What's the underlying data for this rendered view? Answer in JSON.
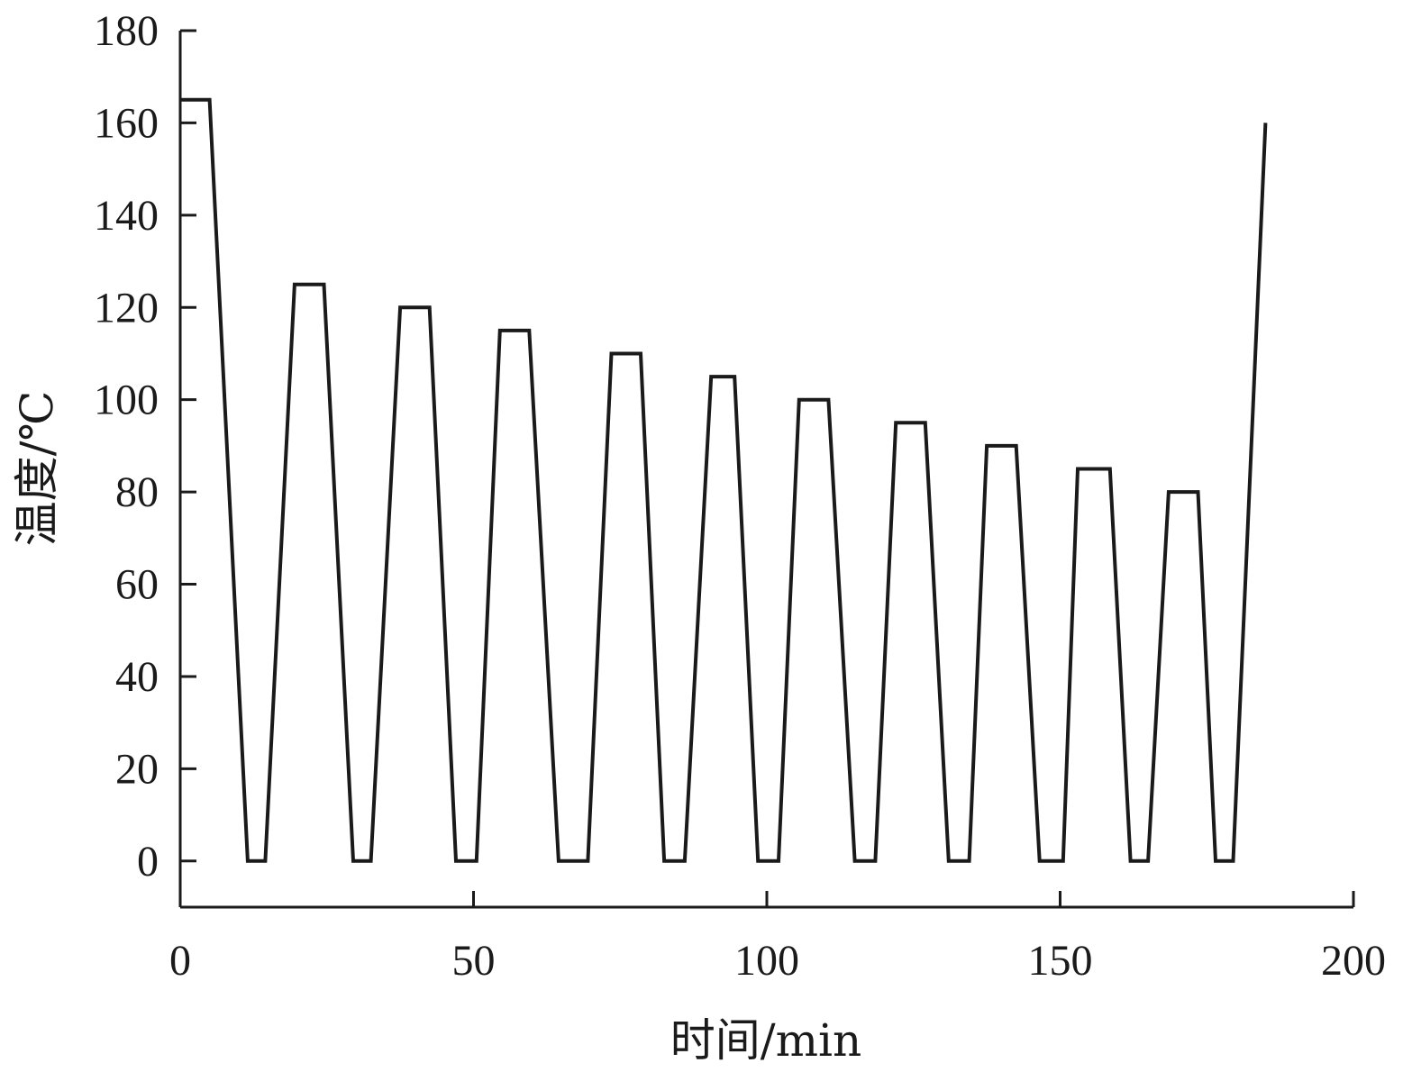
{
  "chart_data": {
    "type": "line",
    "xlabel": "时间/min",
    "ylabel": "温度/℃",
    "xlim": [
      0,
      200
    ],
    "ylim": [
      -10,
      180
    ],
    "x_ticks": [
      0,
      50,
      100,
      150,
      200
    ],
    "y_ticks": [
      0,
      20,
      40,
      60,
      80,
      100,
      120,
      140,
      160,
      180
    ],
    "x_tick_labels": [
      "0",
      "50",
      "100",
      "150",
      "200"
    ],
    "y_tick_labels": [
      "0",
      "20",
      "40",
      "60",
      "80",
      "100",
      "120",
      "140",
      "160",
      "180"
    ],
    "grid": false,
    "legend": "none",
    "colors": {
      "line": "#1a1a1a",
      "axis": "#1a1a1a"
    },
    "series": [
      {
        "x": [
          0,
          5,
          11.5,
          14.5,
          19.5,
          24.5,
          29.5,
          32.5,
          37.5,
          42.5,
          47,
          50.5,
          54.5,
          59.5,
          64.5,
          69.5,
          73.5,
          78.5,
          82.5,
          86,
          90.5,
          94.5,
          98.5,
          102,
          105.5,
          110.5,
          115,
          118.5,
          122,
          127,
          131,
          134.5,
          137.5,
          142.5,
          146.5,
          150.5,
          153,
          158.5,
          162,
          165,
          168.5,
          173.5,
          176.5,
          179.5,
          185
        ],
        "y": [
          165,
          165,
          0,
          0,
          125,
          125,
          0,
          0,
          120,
          120,
          0,
          0,
          115,
          115,
          0,
          0,
          110,
          110,
          0,
          0,
          105,
          105,
          0,
          0,
          100,
          100,
          0,
          0,
          95,
          95,
          0,
          0,
          90,
          90,
          0,
          0,
          85,
          85,
          0,
          0,
          80,
          80,
          0,
          0,
          160
        ]
      }
    ]
  }
}
